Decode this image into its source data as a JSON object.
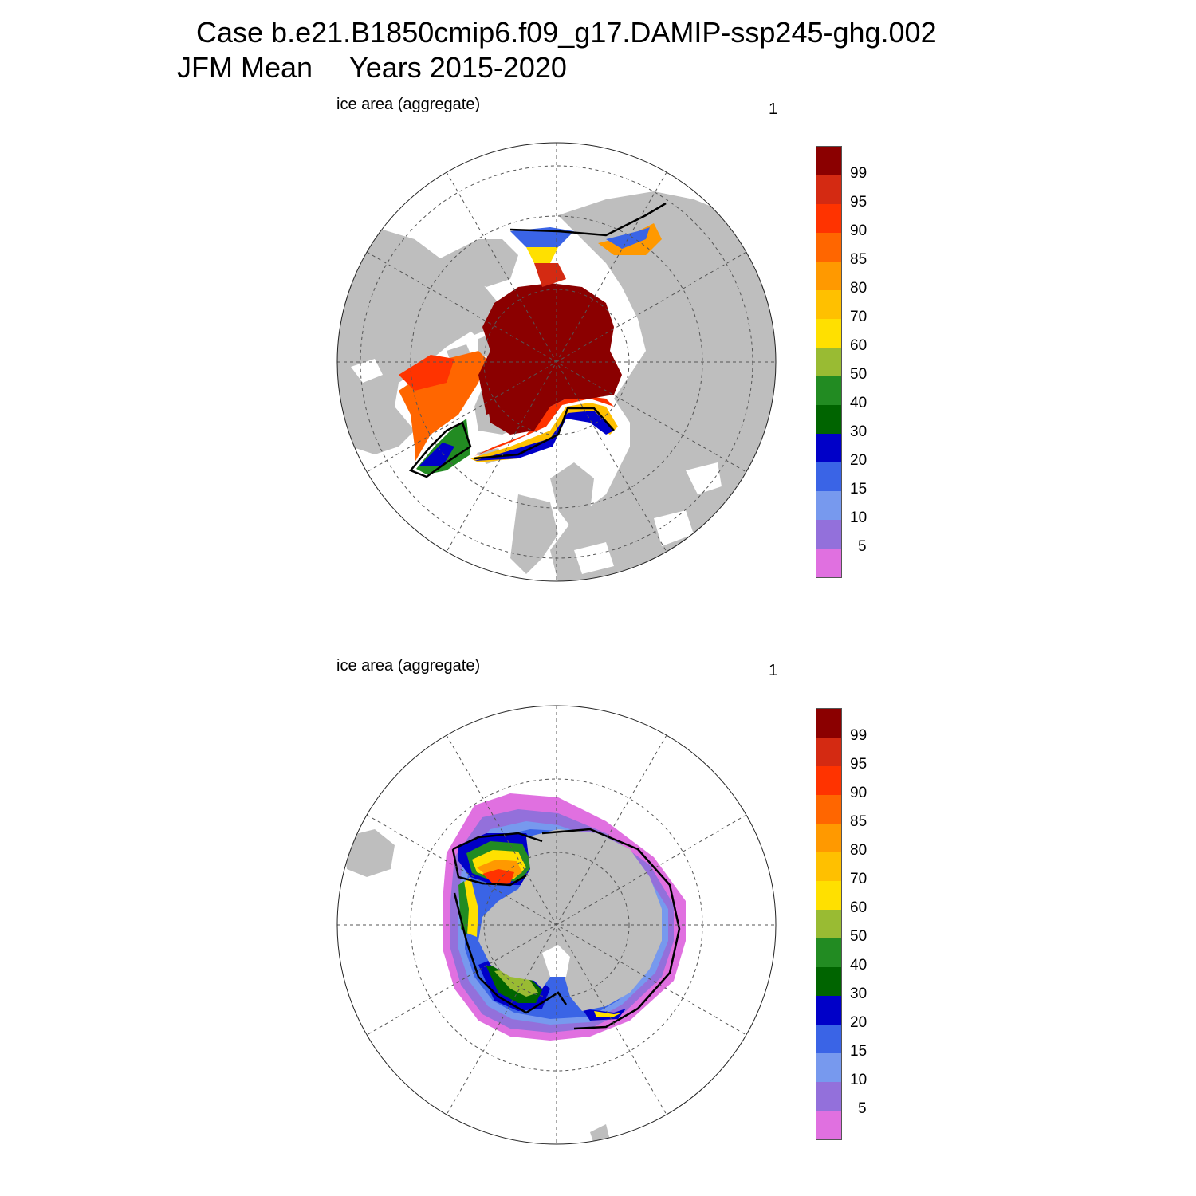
{
  "title": {
    "line1": "Case b.e21.B1850cmip6.f09_g17.DAMIP-ssp245-ghg.002",
    "season": "JFM Mean",
    "years": "Years 2015-2020"
  },
  "panels": [
    {
      "id": "nh",
      "label": "ice area  (aggregate)",
      "number": "1"
    },
    {
      "id": "sh",
      "label": "ice area  (aggregate)",
      "number": "1"
    }
  ],
  "colorbar": {
    "levels": [
      "99",
      "95",
      "90",
      "85",
      "80",
      "70",
      "60",
      "50",
      "40",
      "30",
      "20",
      "15",
      "10",
      "5"
    ],
    "colors": [
      "#8b0000",
      "#d42a12",
      "#ff3300",
      "#ff6600",
      "#ff9900",
      "#ffc000",
      "#ffe000",
      "#99bb33",
      "#228b22",
      "#006400",
      "#0000c8",
      "#3a64e6",
      "#7799ee",
      "#9370db",
      "#e070e0"
    ]
  },
  "colors": {
    "land": "#bebebe",
    "ocean": "#ffffff",
    "contour": "#000000",
    "grid": "#555555"
  }
}
